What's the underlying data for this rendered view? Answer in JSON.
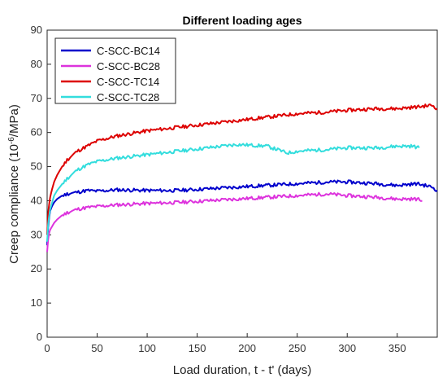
{
  "chart_data": {
    "type": "line",
    "title": "Different loading ages",
    "xlabel": "Load duration, t - t' (days)",
    "ylabel_main": "Creep compliance (10",
    "ylabel_sup": "-6",
    "ylabel_tail": "/MPa)",
    "xlim": [
      0,
      390
    ],
    "ylim": [
      0,
      90
    ],
    "xticks": [
      0,
      50,
      100,
      150,
      200,
      250,
      300,
      350
    ],
    "yticks": [
      0,
      10,
      20,
      30,
      40,
      50,
      60,
      70,
      80,
      90
    ],
    "grid": false,
    "legend_position": "top-left",
    "series": [
      {
        "name": "C-SCC-BC14",
        "color": "#0000cc",
        "x": [
          0,
          1,
          2,
          3,
          5,
          7,
          10,
          14,
          20,
          30,
          40,
          50,
          70,
          100,
          130,
          160,
          190,
          220,
          250,
          280,
          300,
          330,
          350,
          370,
          385,
          390
        ],
        "y": [
          27,
          32,
          35,
          37,
          38.5,
          39.5,
          40.5,
          41.3,
          42,
          42.5,
          43,
          42.8,
          43.2,
          43,
          43,
          43.5,
          44,
          44.5,
          45,
          45.5,
          45.5,
          45,
          44.5,
          45,
          44,
          43
        ]
      },
      {
        "name": "C-SCC-BC28",
        "color": "#dd33dd",
        "x": [
          0,
          1,
          2,
          3,
          5,
          7,
          10,
          14,
          20,
          30,
          40,
          50,
          70,
          100,
          130,
          160,
          190,
          220,
          250,
          280,
          300,
          330,
          350,
          370,
          375
        ],
        "y": [
          25,
          28.5,
          30.5,
          31.5,
          32.5,
          33.5,
          34.5,
          35.5,
          36.5,
          37.5,
          38,
          38.3,
          38.8,
          39.2,
          39.5,
          40,
          40.5,
          41,
          41.5,
          42,
          41.5,
          41,
          40.5,
          40.5,
          40
        ]
      },
      {
        "name": "C-SCC-TC14",
        "color": "#dd0000",
        "x": [
          0,
          1,
          2,
          3,
          5,
          7,
          10,
          14,
          20,
          30,
          40,
          50,
          70,
          100,
          130,
          160,
          190,
          220,
          250,
          280,
          300,
          330,
          350,
          370,
          385,
          390
        ],
        "y": [
          30,
          36,
          39,
          41,
          43.5,
          45.5,
          47.5,
          49.5,
          52,
          54.5,
          56,
          57.5,
          59,
          60.5,
          61.5,
          62.5,
          63.5,
          64.5,
          65.5,
          66,
          66.5,
          67,
          67,
          67.5,
          68,
          67
        ]
      },
      {
        "name": "C-SCC-TC28",
        "color": "#33dddd",
        "x": [
          0,
          1,
          2,
          3,
          5,
          7,
          10,
          14,
          20,
          30,
          40,
          50,
          70,
          100,
          130,
          160,
          190,
          220,
          240,
          250,
          280,
          300,
          330,
          350,
          365,
          372
        ],
        "y": [
          28,
          33,
          35.5,
          37.5,
          39.5,
          41.5,
          43,
          44.5,
          46.5,
          49,
          50.5,
          51.5,
          52.5,
          53.5,
          54.5,
          55.5,
          56.5,
          56,
          54,
          54.5,
          55,
          55.5,
          55.5,
          56,
          56,
          55.5
        ]
      }
    ]
  }
}
